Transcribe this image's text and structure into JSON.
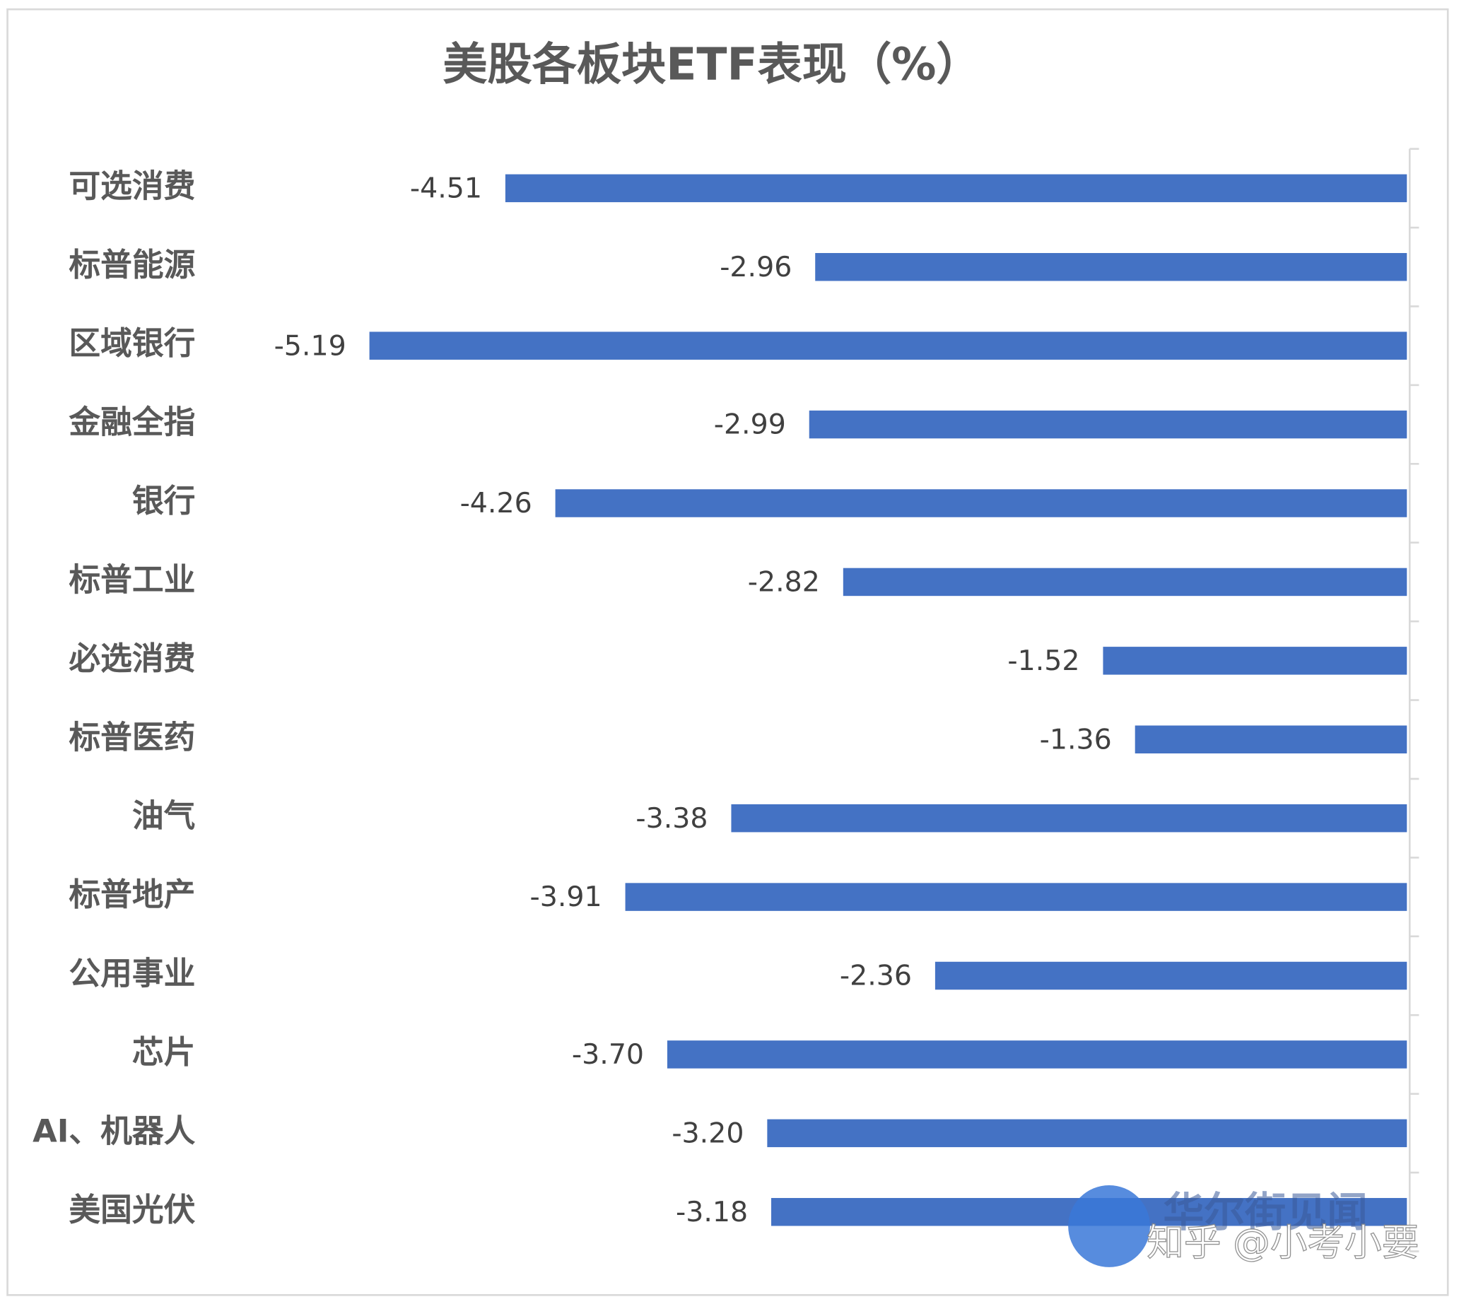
{
  "chart_data": {
    "type": "barh",
    "title": "美股各板块ETF表现（%）",
    "categories": [
      "可选消费",
      "标普能源",
      "区域银行",
      "金融全指",
      "银行",
      "标普工业",
      "必选消费",
      "标普医药",
      "油气",
      "标普地产",
      "公用事业",
      "芯片",
      "AI、机器人",
      "美国光伏"
    ],
    "values": [
      -4.51,
      -2.96,
      -5.19,
      -2.99,
      -4.26,
      -2.82,
      -1.52,
      -1.36,
      -3.38,
      -3.91,
      -2.36,
      -3.7,
      -3.2,
      -3.18
    ],
    "value_labels": [
      "-4.51",
      "-2.96",
      "-5.19",
      "-2.99",
      "-4.26",
      "-2.82",
      "-1.52",
      "-1.36",
      "-3.38",
      "-3.91",
      "-2.36",
      "-3.70",
      "-3.20",
      "-3.18"
    ],
    "color": "#4472c4",
    "xlim": [
      -6,
      0
    ],
    "annotations": [
      "华尔街见闻",
      "知乎 @小考小要"
    ]
  }
}
